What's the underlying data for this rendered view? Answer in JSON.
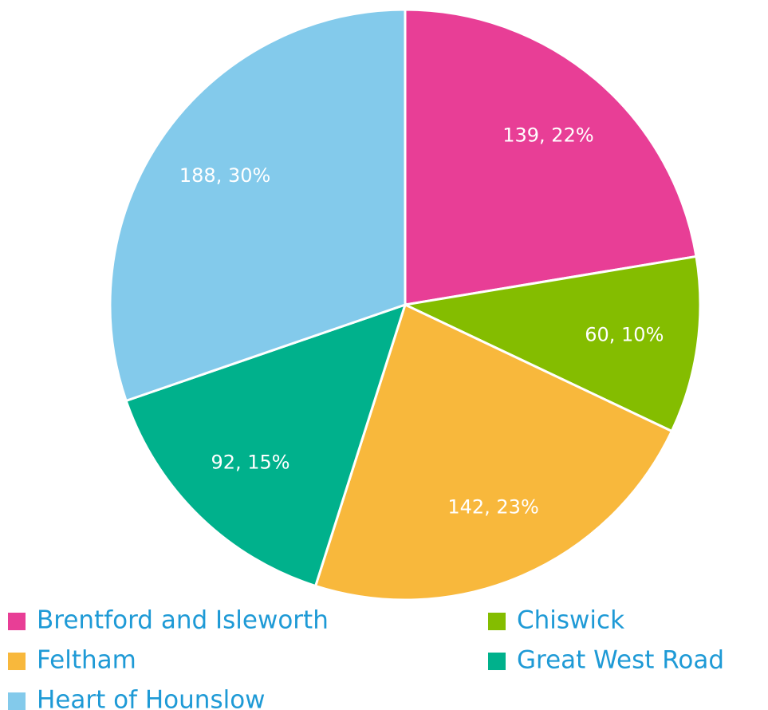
{
  "chart_data": {
    "type": "pie",
    "categories": [
      "Brentford and Isleworth",
      "Chiswick",
      "Feltham",
      "Great West Road",
      "Heart of Hounslow"
    ],
    "values": [
      139,
      60,
      142,
      92,
      188
    ],
    "value_labels": [
      "139, 22%",
      "60, 10%",
      "142, 23%",
      "92, 15%",
      "188, 30%"
    ],
    "colors": [
      "#e83e96",
      "#84bd00",
      "#f8b83c",
      "#00b18c",
      "#83caeb"
    ],
    "legend": "bottom"
  }
}
